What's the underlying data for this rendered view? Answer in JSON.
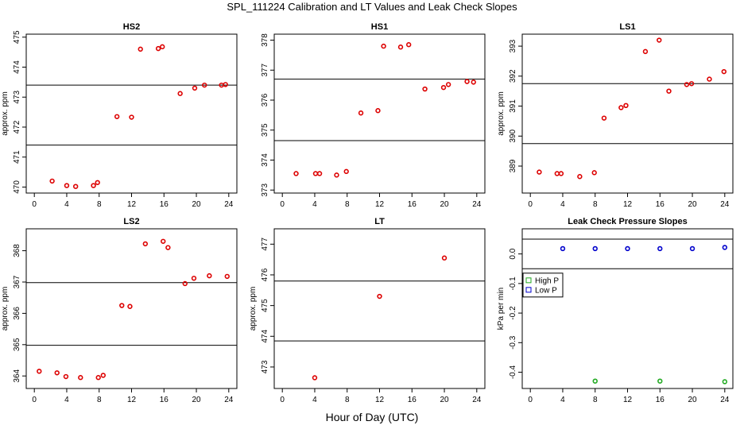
{
  "title": "SPL_111224  Calibration and LT Values and Leak Check Slopes",
  "x_axis_title": "Hour of Day (UTC)",
  "colors": {
    "cal": "#dd0000",
    "high": "#22aa22",
    "low": "#0000cc",
    "line": "#000000"
  },
  "chart_data": [
    {
      "type": "scatter",
      "title": "HS2",
      "ylabel": "approx. ppm",
      "xlim": [
        -1,
        25
      ],
      "ylim": [
        469.8,
        475.1
      ],
      "xticks": [
        0,
        4,
        8,
        12,
        16,
        20,
        24
      ],
      "yticks": [
        470,
        471,
        472,
        473,
        474,
        475
      ],
      "hlines": [
        471.4,
        473.4
      ],
      "series": [
        {
          "name": "circle",
          "marker": "circle",
          "color": "cal",
          "x": [
            2.2,
            4,
            5.1,
            7.3,
            7.8,
            10.2,
            12,
            13.1,
            15.3,
            15.8,
            18,
            19.8,
            21,
            23.1,
            23.6
          ],
          "y": [
            470.2,
            470.05,
            470.02,
            470.05,
            470.15,
            472.35,
            472.33,
            474.6,
            474.62,
            474.68,
            473.12,
            473.3,
            473.4,
            473.4,
            473.42
          ]
        }
      ]
    },
    {
      "type": "scatter",
      "title": "HS1",
      "ylabel": "",
      "xlim": [
        -1,
        25
      ],
      "ylim": [
        372.9,
        378.2
      ],
      "xticks": [
        0,
        4,
        8,
        12,
        16,
        20,
        24
      ],
      "yticks": [
        373,
        374,
        375,
        376,
        377,
        378
      ],
      "hlines": [
        374.65,
        376.7
      ],
      "series": [
        {
          "name": "circle",
          "marker": "circle",
          "color": "cal",
          "x": [
            1.7,
            4.1,
            4.6,
            6.7,
            7.9,
            9.7,
            11.8,
            12.5,
            14.6,
            15.6,
            17.6,
            19.9,
            20.5,
            22.8,
            23.6
          ],
          "y": [
            373.55,
            373.55,
            373.55,
            373.5,
            373.62,
            375.57,
            375.65,
            377.8,
            377.77,
            377.85,
            376.37,
            376.42,
            376.52,
            376.62,
            376.6
          ]
        }
      ]
    },
    {
      "type": "scatter",
      "title": "LS1",
      "ylabel": "approx. ppm",
      "xlim": [
        -1,
        25
      ],
      "ylim": [
        388.1,
        393.4
      ],
      "xticks": [
        0,
        4,
        8,
        12,
        16,
        20,
        24
      ],
      "yticks": [
        389,
        390,
        391,
        392,
        393
      ],
      "hlines": [
        389.75,
        391.75
      ],
      "series": [
        {
          "name": "circle",
          "marker": "circle",
          "color": "cal",
          "x": [
            1.1,
            3.3,
            3.8,
            6.1,
            7.9,
            9.1,
            11.2,
            11.8,
            14.2,
            15.9,
            17.1,
            19.3,
            19.9,
            22.1,
            23.9
          ],
          "y": [
            388.8,
            388.75,
            388.75,
            388.65,
            388.78,
            390.6,
            390.95,
            391.02,
            392.82,
            393.2,
            391.5,
            391.72,
            391.75,
            391.9,
            392.15
          ]
        }
      ]
    },
    {
      "type": "scatter",
      "title": "LS2",
      "ylabel": "approx. ppm",
      "xlim": [
        -1,
        25
      ],
      "ylim": [
        363.6,
        368.7
      ],
      "xticks": [
        0,
        4,
        8,
        12,
        16,
        20,
        24
      ],
      "yticks": [
        364,
        365,
        366,
        367,
        368
      ],
      "hlines": [
        364.98,
        366.98
      ],
      "series": [
        {
          "name": "circle",
          "marker": "circle",
          "color": "cal",
          "x": [
            0.6,
            2.8,
            3.9,
            5.7,
            7.9,
            8.5,
            10.8,
            11.8,
            13.7,
            15.9,
            16.5,
            18.6,
            19.7,
            21.6,
            23.8
          ],
          "y": [
            364.15,
            364.1,
            363.98,
            363.95,
            363.95,
            364.02,
            366.25,
            366.22,
            368.22,
            368.3,
            368.1,
            366.95,
            367.12,
            367.2,
            367.18
          ]
        }
      ]
    },
    {
      "type": "scatter",
      "title": "LT",
      "ylabel": "approx. ppm",
      "xlim": [
        -1,
        25
      ],
      "ylim": [
        472.3,
        477.5
      ],
      "xticks": [
        0,
        4,
        8,
        12,
        16,
        20,
        24
      ],
      "yticks": [
        473,
        474,
        475,
        476,
        477
      ],
      "hlines": [
        473.85,
        475.8
      ],
      "series": [
        {
          "name": "circle",
          "marker": "circle",
          "color": "cal",
          "x": [
            4,
            12,
            20
          ],
          "y": [
            472.65,
            475.3,
            476.55
          ]
        }
      ]
    },
    {
      "type": "scatter",
      "title": "Leak Check Pressure Slopes",
      "ylabel": "kPa per min",
      "xlim": [
        -1,
        25
      ],
      "ylim": [
        -0.455,
        0.085
      ],
      "xticks": [
        0,
        4,
        8,
        12,
        16,
        20,
        24
      ],
      "yticks": [
        0.0,
        -0.1,
        -0.2,
        -0.3,
        -0.4
      ],
      "ytick_labels": [
        "0.0",
        "-0.1",
        "-0.2",
        "-0.3",
        "-0.4"
      ],
      "hlines": [
        0.05,
        -0.05
      ],
      "legend": {
        "position": "top-left",
        "entries": [
          "High P",
          "Low P"
        ]
      },
      "series": [
        {
          "name": "High P",
          "marker": "circle",
          "color": "high",
          "x": [
            8,
            16,
            24
          ],
          "y": [
            -0.43,
            -0.43,
            -0.432
          ]
        },
        {
          "name": "Low P",
          "marker": "circle",
          "color": "low",
          "x": [
            4,
            8,
            12,
            16,
            20,
            24
          ],
          "y": [
            0.018,
            0.018,
            0.018,
            0.018,
            0.018,
            0.022
          ]
        }
      ]
    }
  ]
}
